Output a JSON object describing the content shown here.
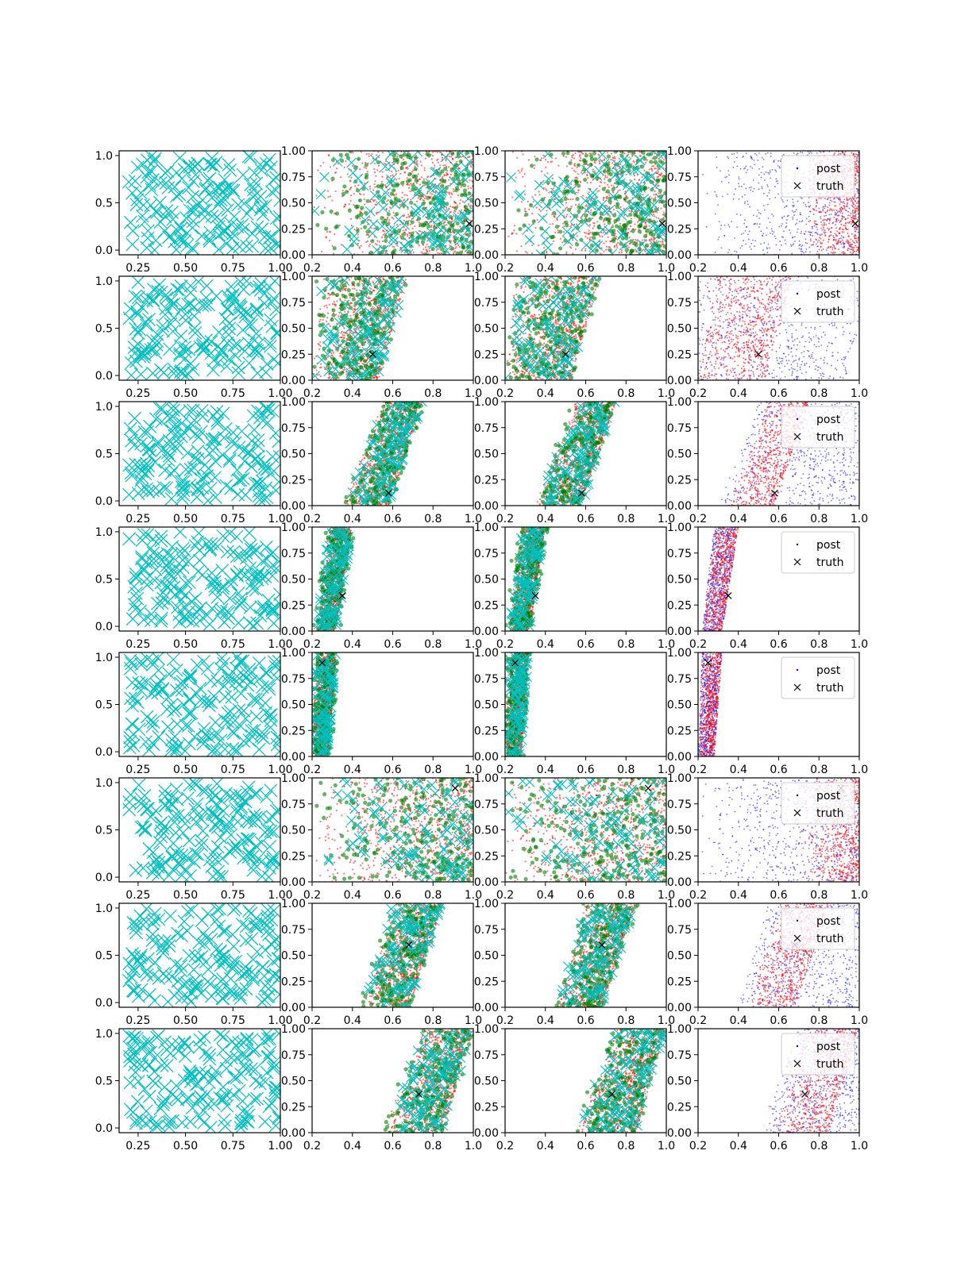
{
  "colors": {
    "cyan": "#00bfbf",
    "green": "#008000",
    "red": "#ff0000",
    "blue": "#0000ff",
    "black": "#000000"
  },
  "chart_data": {
    "type": "scatter",
    "grid": false,
    "layout": "8 rows x 4 columns of scatter panels",
    "axes": {
      "col1": {
        "xlim": [
          0.15,
          1.0
        ],
        "ylim": [
          -0.05,
          1.05
        ],
        "x_ticks": [
          0.25,
          0.5,
          0.75,
          1.0
        ],
        "x_tick_labels": [
          "0.25",
          "0.50",
          "0.75",
          "1.00"
        ],
        "y_ticks": [
          0.0,
          0.5,
          1.0
        ],
        "y_tick_labels": [
          "0.0",
          "0.5",
          "1.0"
        ]
      },
      "col234": {
        "xlim": [
          0.2,
          1.0
        ],
        "ylim": [
          0.0,
          1.0
        ],
        "x_ticks": [
          0.2,
          0.4,
          0.6,
          0.8,
          1.0
        ],
        "x_tick_labels": [
          "0.2",
          "0.4",
          "0.6",
          "0.8",
          "1.0"
        ],
        "y_ticks": [
          0.0,
          0.25,
          0.5,
          0.75,
          1.0
        ],
        "y_tick_labels": [
          "0.00",
          "0.25",
          "0.50",
          "0.75",
          "1.00"
        ]
      }
    },
    "legend": {
      "entries": [
        "post",
        "truth"
      ],
      "placement": "upper right",
      "panels": "column 4"
    },
    "marker_series": {
      "samples": {
        "marker": "x",
        "color": "cyan"
      },
      "green": {
        "marker": "dot",
        "color": "green"
      },
      "red": {
        "marker": "dot",
        "color": "red"
      },
      "post": {
        "marker": "dot",
        "color": "blue"
      },
      "truth": {
        "marker": "x",
        "color": "black"
      }
    },
    "rows": [
      {
        "truth": [
          0.98,
          0.3
        ],
        "band": null
      },
      {
        "truth": [
          0.5,
          0.25
        ],
        "band": {
          "x_at_y0": [
            0.2,
            0.53
          ],
          "x_at_y1": [
            0.25,
            0.67
          ]
        }
      },
      {
        "truth": [
          0.58,
          0.12
        ],
        "band": {
          "x_at_y0": [
            0.35,
            0.58
          ],
          "x_at_y1": [
            0.55,
            0.75
          ]
        }
      },
      {
        "truth": [
          0.35,
          0.34
        ],
        "band": {
          "x_at_y0": [
            0.22,
            0.32
          ],
          "x_at_y1": [
            0.28,
            0.4
          ]
        }
      },
      {
        "truth": [
          0.25,
          0.9
        ],
        "band": {
          "x_at_y0": [
            0.2,
            0.28
          ],
          "x_at_y1": [
            0.22,
            0.32
          ]
        }
      },
      {
        "truth": [
          0.91,
          0.9
        ],
        "band": null
      },
      {
        "truth": [
          0.68,
          0.6
        ],
        "band": {
          "x_at_y0": [
            0.45,
            0.68
          ],
          "x_at_y1": [
            0.6,
            0.85
          ]
        }
      },
      {
        "truth": [
          0.73,
          0.37
        ],
        "band": {
          "x_at_y0": [
            0.55,
            0.85
          ],
          "x_at_y1": [
            0.75,
            1.0
          ]
        }
      }
    ]
  }
}
